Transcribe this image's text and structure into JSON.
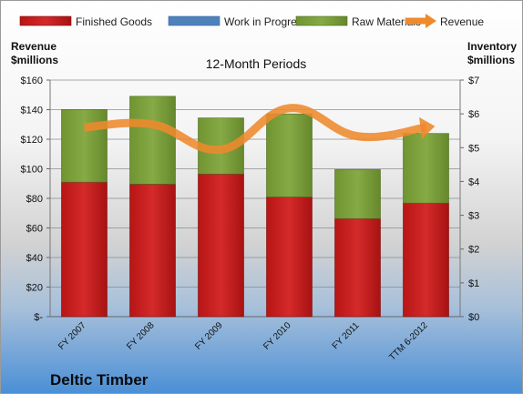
{
  "colors": {
    "finished_goods": "#c81d1d",
    "work_in_progress": "#4f81bd",
    "raw_materials": "#7fa33a",
    "revenue": "#ee8a2c"
  },
  "chart_data": {
    "type": "bar",
    "stacked": true,
    "subtitle": "12-Month Periods",
    "company": "Deltic Timber",
    "left_axis_title": [
      "Revenue",
      "$millions"
    ],
    "right_axis_title": [
      "Inventory",
      "$millions"
    ],
    "categories": [
      "FY 2007",
      "FY 2008",
      "FY 2009",
      "FY 2010",
      "FY 2011",
      "TTM 6-2012"
    ],
    "left_ylim": [
      0,
      160
    ],
    "left_ticks": [
      "$-",
      "$20",
      "$40",
      "$60",
      "$80",
      "$100",
      "$120",
      "$140",
      "$160"
    ],
    "right_ylim": [
      0,
      7
    ],
    "right_ticks": [
      "$0",
      "$1",
      "$2",
      "$3",
      "$4",
      "$5",
      "$6",
      "$7"
    ],
    "series": [
      {
        "name": "Finished Goods",
        "type": "bar",
        "axis": "right",
        "values": [
          3.98,
          3.92,
          4.22,
          3.54,
          2.9,
          3.36
        ]
      },
      {
        "name": "Work in Progress",
        "type": "bar",
        "axis": "right",
        "values": [
          0,
          0,
          0,
          0,
          0,
          0
        ]
      },
      {
        "name": "Raw Materials",
        "type": "bar",
        "axis": "right",
        "values": [
          2.15,
          2.6,
          1.66,
          2.46,
          1.45,
          2.06
        ]
      },
      {
        "name": "Revenue",
        "type": "line",
        "axis": "left",
        "values": [
          128,
          130,
          113,
          141,
          122,
          128
        ]
      }
    ],
    "legend_position": "top",
    "grid": true
  }
}
